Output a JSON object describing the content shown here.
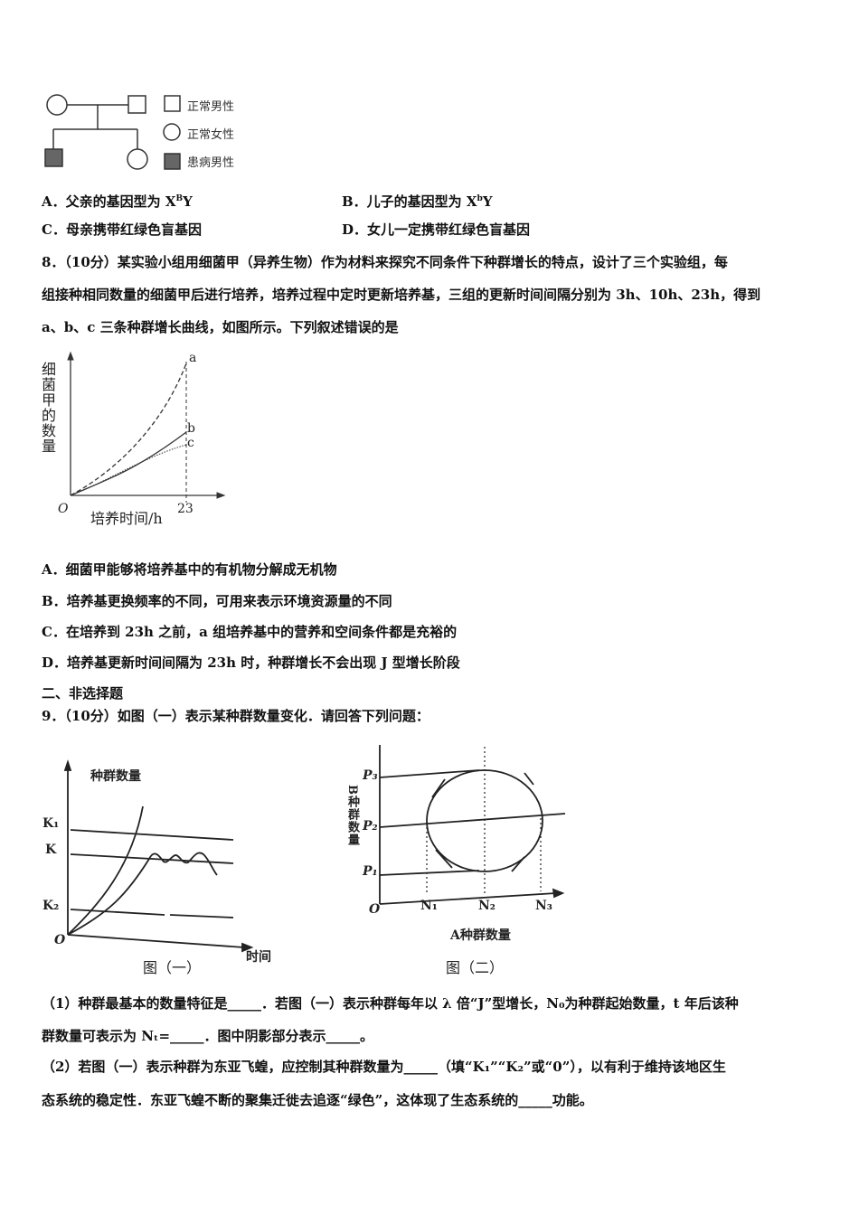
{
  "pedigree": {
    "legend": [
      "正常男性",
      "正常女性",
      "患病男性"
    ]
  },
  "q7_options": [
    {
      "label": "A．父亲的基因型为 X",
      "sup": "B",
      "tail": "Y"
    },
    {
      "label": "B．儿子的基因型为 X",
      "sup": "b",
      "tail": "Y"
    },
    {
      "label": "C．母亲携带红绿色盲基因"
    },
    {
      "label": "D．女儿一定携带红绿色盲基因"
    }
  ],
  "q8": {
    "lines": [
      "8．（10分）某实验小组用细菌甲（异养生物）作为材料来探究不同条件下种群增长的特点，设计了三个实验组，每",
      "组接种相同数量的细菌甲后进行培养，培养过程中定时更新培养基，三组的更新时间间隔分别为 3h、10h、23h，得到",
      "a、b、c 三条种群增长曲线，如图所示。下列叙述错误的是"
    ],
    "figure": {
      "ylabel": "细菌甲的数量",
      "xlabel": "培养时间/h",
      "origin": "O",
      "tick": "23",
      "curves": [
        "a",
        "b",
        "c"
      ]
    },
    "options": [
      "A．细菌甲能够将培养基中的有机物分解成无机物",
      "B．培养基更换频率的不同，可用来表示环境资源量的不同",
      "C．在培养到 23h 之前，a 组培养基中的营养和空间条件都是充裕的",
      "D．培养基更新时间间隔为 23h 时，种群增长不会出现 J 型增长阶段"
    ]
  },
  "section2": "二、非选择题",
  "q9": {
    "intro": "9．（10分）如图（一）表示某种群数量变化．请回答下列问题：",
    "fig1": {
      "ylabel": "种群数量",
      "xlabel": "时间",
      "k1": "K₁",
      "k": "K",
      "k2": "K₂",
      "origin": "O",
      "caption": "图（一）"
    },
    "fig2": {
      "ylabel": "B种群数量",
      "xlabel": "A种群数量",
      "p3": "P₃",
      "p2": "P₂",
      "p1": "P₁",
      "n1": "N₁",
      "n2": "N₂",
      "n3": "N₃",
      "origin": "O",
      "caption": "图（二）"
    },
    "lines": [
      "（1）种群最基本的数量特征是_____．若图（一）表示种群每年以 λ 倍“J”型增长，N₀为种群起始数量，t 年后该种",
      "群数量可表示为 Nₜ=_____．图中阴影部分表示_____。",
      "（2）若图（一）表示种群为东亚飞蝗，应控制其种群数量为_____（填“K₁”“K₂”或“0”），以有利于维持该地区生",
      "态系统的稳定性．东亚飞蝗不断的聚集迁徙去追逐“绿色”，这体现了生态系统的_____功能。"
    ]
  }
}
